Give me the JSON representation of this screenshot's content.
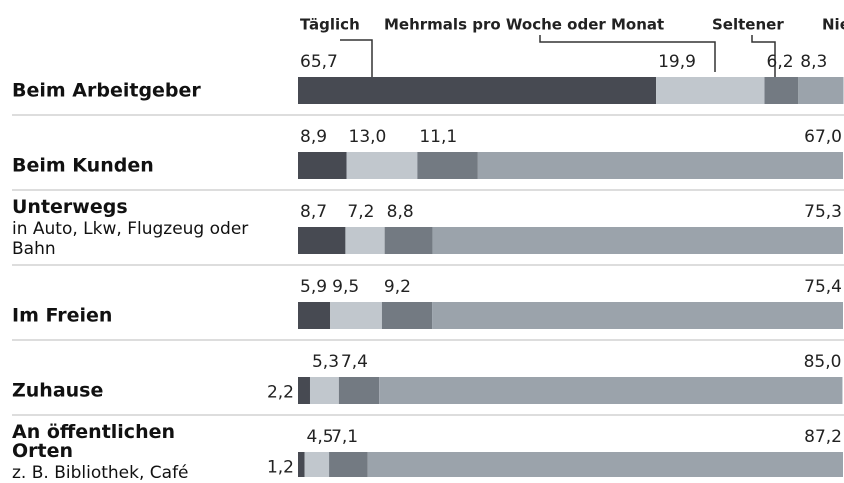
{
  "chart_data": {
    "type": "stacked-bar",
    "categories": [
      "Beim Arbeitgeber",
      "Beim Kunden",
      "Unterwegs",
      "Im Freien",
      "Zuhause",
      "An öffentlichen Orten"
    ],
    "subtitles": [
      null,
      null,
      "in Auto, Lkw, Flugzeug oder Bahn",
      null,
      null,
      "z. B. Bibliothek, Café"
    ],
    "xlim": [
      0,
      100
    ],
    "series": [
      {
        "name": "Täglich",
        "color": "#474a52",
        "values": [
          65.7,
          8.9,
          8.7,
          5.9,
          2.2,
          1.2
        ],
        "value_labels": [
          "65,7",
          "8,9",
          "8,7",
          "5,9",
          "2,2",
          "1,2"
        ]
      },
      {
        "name": "Mehrmals pro Woche oder Monat",
        "color": "#c1c7cd",
        "values": [
          19.9,
          13.0,
          7.2,
          9.5,
          5.3,
          4.5
        ],
        "value_labels": [
          "19,9",
          "13,0",
          "7,2",
          "9,5",
          "5,3",
          "4,5"
        ]
      },
      {
        "name": "Seltener",
        "color": "#737a82",
        "values": [
          6.2,
          11.1,
          8.8,
          9.2,
          7.4,
          7.1
        ],
        "value_labels": [
          "6,2",
          "11,1",
          "8,8",
          "9,2",
          "7,4",
          "7,1"
        ]
      },
      {
        "name": "Nie",
        "color": "#9ba3ab",
        "values": [
          8.3,
          67.0,
          75.3,
          75.4,
          85.0,
          87.2
        ],
        "value_labels": [
          "8,3",
          "67,0",
          "75,3",
          "75,4",
          "85,0",
          "87,2"
        ]
      }
    ]
  }
}
